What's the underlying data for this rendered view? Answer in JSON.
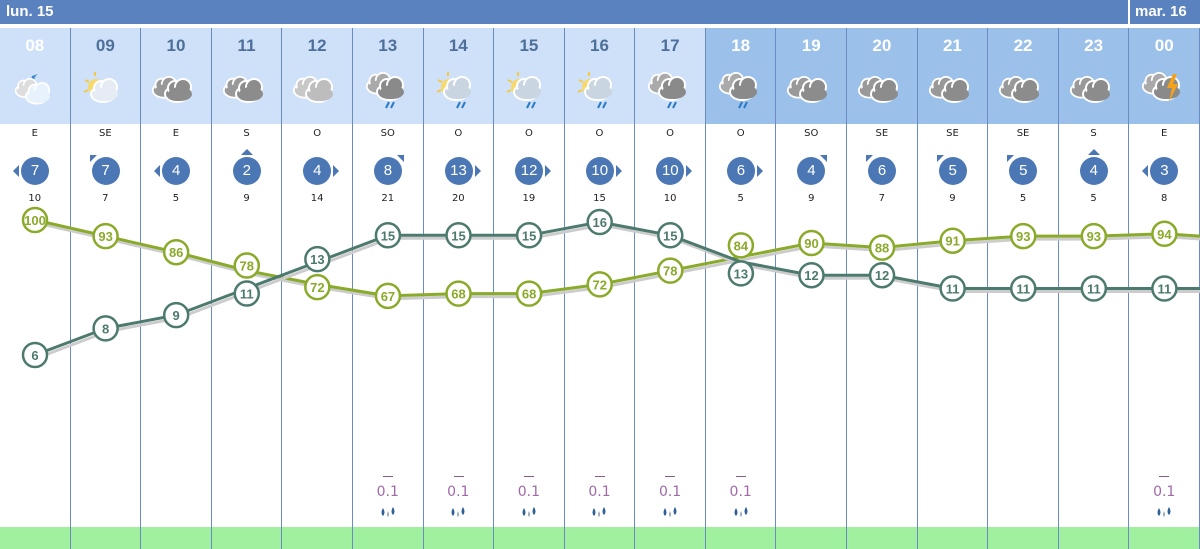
{
  "days": [
    {
      "label": "lun. 15"
    },
    {
      "label": "mar. 16"
    }
  ],
  "colors": {
    "temperature": "#4d7a6e",
    "humidity": "#8aaa2a",
    "wind_badge": "#4c77b5",
    "header_day": "#cfe1f8",
    "header_night": "#9bc0e9",
    "daybar": "#5a82bf"
  },
  "hours": [
    {
      "hour": "08",
      "icon": "moon-cloud-icon",
      "dir": "E",
      "wind": "7",
      "gust": "10",
      "temp": 6,
      "hum": 100,
      "precip": null,
      "night": false,
      "now": true
    },
    {
      "hour": "09",
      "icon": "sun-cloud-icon",
      "dir": "SE",
      "wind": "7",
      "gust": "7",
      "temp": 8,
      "hum": 93,
      "precip": null
    },
    {
      "hour": "10",
      "icon": "cloudy-icon",
      "dir": "E",
      "wind": "4",
      "gust": "5",
      "temp": 9,
      "hum": 86,
      "precip": null
    },
    {
      "hour": "11",
      "icon": "cloudy-icon",
      "dir": "S",
      "wind": "2",
      "gust": "9",
      "temp": 11,
      "hum": 78,
      "precip": null
    },
    {
      "hour": "12",
      "icon": "light-cloudy-icon",
      "dir": "O",
      "wind": "4",
      "gust": "14",
      "temp": 13,
      "hum": 72,
      "precip": null
    },
    {
      "hour": "13",
      "icon": "cloud-rain-icon",
      "dir": "SO",
      "wind": "8",
      "gust": "21",
      "temp": 15,
      "hum": 67,
      "precip": "0.1"
    },
    {
      "hour": "14",
      "icon": "sun-cloud-rain-icon",
      "dir": "O",
      "wind": "13",
      "gust": "20",
      "temp": 15,
      "hum": 68,
      "precip": "0.1"
    },
    {
      "hour": "15",
      "icon": "sun-cloud-rain-icon",
      "dir": "O",
      "wind": "12",
      "gust": "19",
      "temp": 15,
      "hum": 68,
      "precip": "0.1"
    },
    {
      "hour": "16",
      "icon": "sun-cloud-rain-icon",
      "dir": "O",
      "wind": "10",
      "gust": "15",
      "temp": 16,
      "hum": 72,
      "precip": "0.1"
    },
    {
      "hour": "17",
      "icon": "cloud-rain-icon",
      "dir": "O",
      "wind": "10",
      "gust": "10",
      "temp": 15,
      "hum": 78,
      "precip": "0.1"
    },
    {
      "hour": "18",
      "icon": "cloud-rain-icon",
      "dir": "O",
      "wind": "6",
      "gust": "5",
      "temp": 13,
      "hum": 84,
      "precip": "0.1",
      "night": true
    },
    {
      "hour": "19",
      "icon": "cloudy-icon",
      "dir": "SO",
      "wind": "4",
      "gust": "9",
      "temp": 12,
      "hum": 90,
      "precip": null,
      "night": true
    },
    {
      "hour": "20",
      "icon": "cloudy-icon",
      "dir": "SE",
      "wind": "6",
      "gust": "7",
      "temp": 12,
      "hum": 88,
      "precip": null,
      "night": true
    },
    {
      "hour": "21",
      "icon": "cloudy-icon",
      "dir": "SE",
      "wind": "5",
      "gust": "9",
      "temp": 11,
      "hum": 91,
      "precip": null,
      "night": true
    },
    {
      "hour": "22",
      "icon": "cloudy-icon",
      "dir": "SE",
      "wind": "5",
      "gust": "5",
      "temp": 11,
      "hum": 93,
      "precip": null,
      "night": true
    },
    {
      "hour": "23",
      "icon": "cloudy-icon",
      "dir": "S",
      "wind": "4",
      "gust": "5",
      "temp": 11,
      "hum": 93,
      "precip": null,
      "night": true
    },
    {
      "hour": "00",
      "icon": "thunderstorm-icon",
      "dir": "E",
      "wind": "3",
      "gust": "8",
      "temp": 11,
      "hum": 94,
      "precip": "0.1",
      "night": true
    }
  ]
}
